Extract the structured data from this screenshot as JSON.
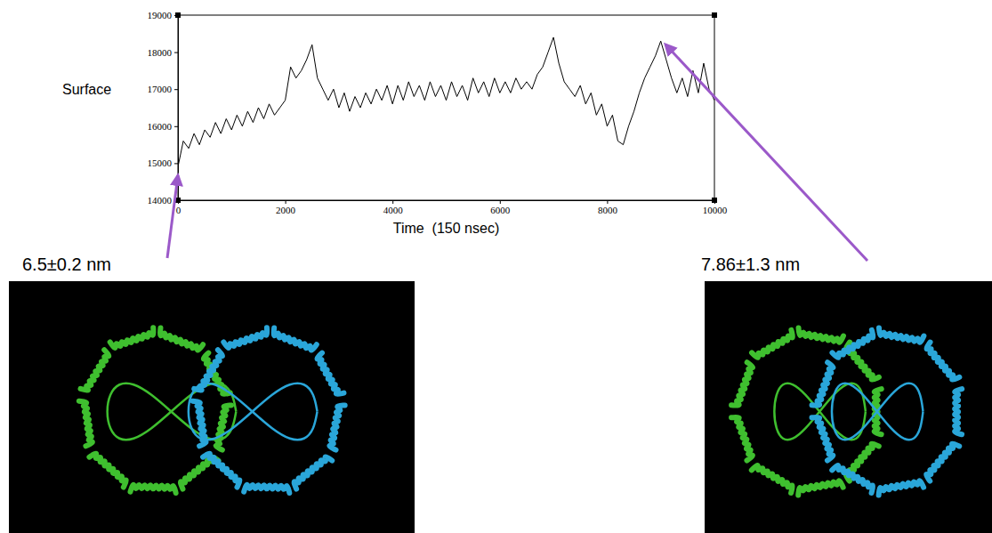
{
  "chart_data": {
    "type": "line",
    "y_label": "Surface",
    "x_label": "Time  (150 nsec)",
    "annotations": [
      "6.5±0.2 nm",
      "7.86±1.3 nm"
    ],
    "color": "#000000",
    "xlim": [
      0,
      10000
    ],
    "xticks": [
      0,
      2000,
      4000,
      6000,
      8000,
      10000
    ],
    "ylim": [
      14000,
      19000
    ],
    "yticks": [
      14000,
      15000,
      16000,
      17000,
      18000,
      19000
    ],
    "x": [
      0,
      100,
      200,
      300,
      400,
      500,
      600,
      700,
      800,
      900,
      1000,
      1100,
      1200,
      1300,
      1400,
      1500,
      1600,
      1700,
      1800,
      1900,
      2000,
      2100,
      2200,
      2300,
      2400,
      2500,
      2600,
      2700,
      2800,
      2900,
      3000,
      3100,
      3200,
      3300,
      3400,
      3500,
      3600,
      3700,
      3800,
      3900,
      4000,
      4100,
      4200,
      4300,
      4400,
      4500,
      4600,
      4700,
      4800,
      4900,
      5000,
      5100,
      5200,
      5300,
      5400,
      5500,
      5600,
      5700,
      5800,
      5900,
      6000,
      6100,
      6200,
      6300,
      6400,
      6500,
      6600,
      6700,
      6800,
      6900,
      7000,
      7100,
      7200,
      7300,
      7400,
      7500,
      7600,
      7700,
      7800,
      7900,
      8000,
      8100,
      8200,
      8300,
      8400,
      8500,
      8600,
      8700,
      8800,
      8900,
      9000,
      9100,
      9200,
      9300,
      9400,
      9500,
      9600,
      9700,
      9800,
      9900,
      10000
    ],
    "values": [
      14900,
      15600,
      15400,
      15800,
      15500,
      15900,
      15700,
      16100,
      15800,
      16200,
      15900,
      16300,
      16000,
      16400,
      16100,
      16500,
      16200,
      16600,
      16300,
      16500,
      16700,
      17600,
      17300,
      17500,
      17800,
      18200,
      17300,
      17000,
      16700,
      17000,
      16500,
      16900,
      16400,
      16800,
      16500,
      16900,
      16600,
      17000,
      16700,
      17100,
      16600,
      17100,
      16700,
      17200,
      16800,
      17100,
      16700,
      17200,
      16800,
      17100,
      16700,
      17200,
      16800,
      17100,
      16700,
      17300,
      16900,
      17200,
      16800,
      17300,
      16900,
      17200,
      16900,
      17300,
      17000,
      17200,
      17000,
      17400,
      17600,
      18000,
      18400,
      17700,
      17200,
      17000,
      16800,
      17100,
      16600,
      16900,
      16300,
      16600,
      16000,
      16300,
      15600,
      15500,
      16000,
      16400,
      16900,
      17300,
      17600,
      17900,
      18300,
      17800,
      17300,
      16900,
      17300,
      16800,
      17500,
      16900,
      17700,
      17000,
      16700
    ]
  }
}
